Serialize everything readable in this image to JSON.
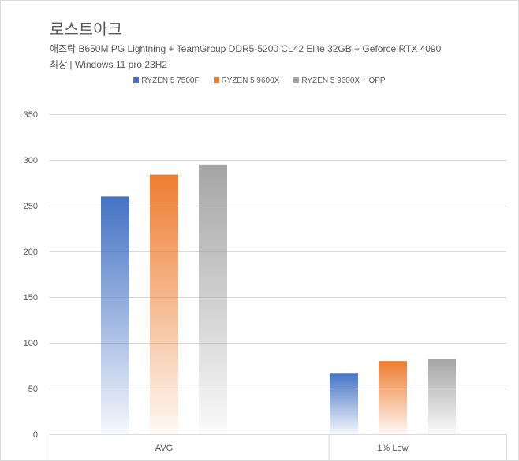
{
  "title": "로스트아크",
  "subtitle_line1": "애즈락 B650M PG Lightning + TeamGroup DDR5-5200 CL42 Elite 32GB + Geforce RTX 4090",
  "subtitle_line2": "최상 | Windows 11 pro 23H2",
  "chart_data": {
    "type": "bar",
    "title": "로스트아크",
    "categories": [
      "AVG",
      "1% Low"
    ],
    "series": [
      {
        "name": "RYZEN 5 7500F",
        "color": "#4472c4",
        "values": [
          260,
          67
        ]
      },
      {
        "name": "RYZEN 5 9600X",
        "color": "#ed7d31",
        "values": [
          284,
          80
        ]
      },
      {
        "name": "RYZEN 5 9600X + OPP",
        "color": "#a5a5a5",
        "values": [
          295,
          82
        ]
      }
    ],
    "ylim": [
      0,
      350
    ],
    "yticks": [
      0,
      50,
      100,
      150,
      200,
      250,
      300,
      350
    ],
    "grid": true,
    "legend": "top-center",
    "xlabel": "",
    "ylabel": ""
  }
}
